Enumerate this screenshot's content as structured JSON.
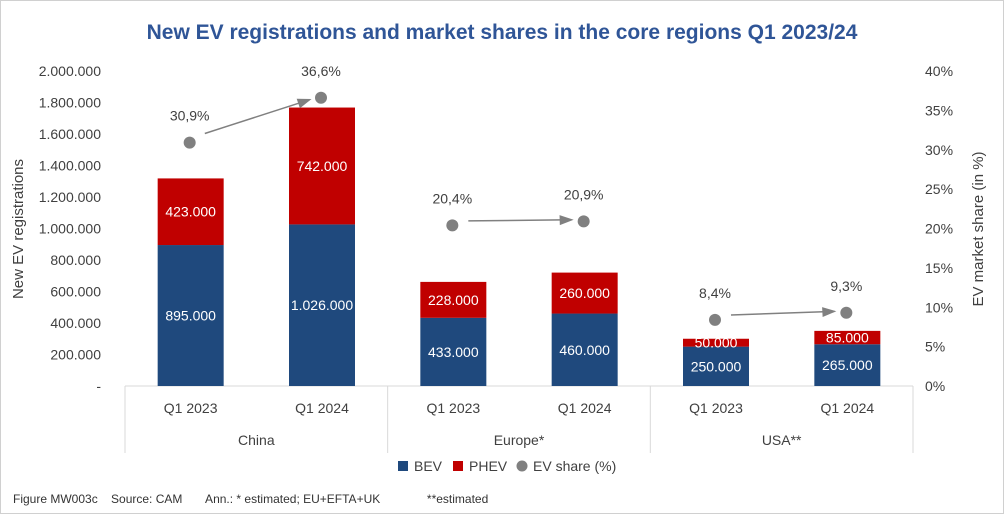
{
  "chart_data": {
    "type": "bar",
    "stacked": true,
    "title": "New EV registrations and market shares in the core regions Q1 2023/24",
    "ylabel": "New EV registrations",
    "y2label": "EV market share (in %)",
    "ylim": [
      0,
      2000000
    ],
    "y2lim": [
      0,
      40
    ],
    "y_ticks": [
      "2.000.000",
      "1.800.000",
      "1.600.000",
      "1.400.000",
      "1.200.000",
      "1.000.000",
      "800.000",
      "600.000",
      "400.000",
      "200.000",
      "-"
    ],
    "y2_ticks": [
      "40%",
      "35%",
      "30%",
      "25%",
      "20%",
      "15%",
      "10%",
      "5%",
      "0%"
    ],
    "groups": [
      "China",
      "Europe*",
      "USA**"
    ],
    "categories": [
      "Q1 2023",
      "Q1 2024",
      "Q1 2023",
      "Q1 2024",
      "Q1 2023",
      "Q1 2024"
    ],
    "series": [
      {
        "name": "BEV",
        "color": "#1f497d",
        "values": [
          895000,
          1026000,
          433000,
          460000,
          250000,
          265000
        ],
        "labels": [
          "895.000",
          "1.026.000",
          "433.000",
          "460.000",
          "250.000",
          "265.000"
        ]
      },
      {
        "name": "PHEV",
        "color": "#c00000",
        "values": [
          423000,
          742000,
          228000,
          260000,
          50000,
          85000
        ],
        "labels": [
          "423.000",
          "742.000",
          "228.000",
          "260.000",
          "50.000",
          "85.000"
        ]
      },
      {
        "name": "EV share (%)",
        "color": "#808080",
        "axis": "secondary",
        "values": [
          30.9,
          36.6,
          20.4,
          20.9,
          8.4,
          9.3
        ],
        "labels": [
          "30,9%",
          "36,6%",
          "20,4%",
          "20,9%",
          "8,4%",
          "9,3%"
        ]
      }
    ],
    "legend": [
      "BEV",
      "PHEV",
      "EV share (%)"
    ],
    "legend_position": "bottom",
    "footer": "Figure MW003c    Source: CAM       Ann.: * estimated; EU+EFTA+UK              **estimated"
  }
}
